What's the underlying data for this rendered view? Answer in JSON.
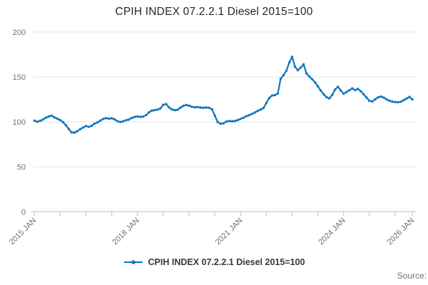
{
  "title": "CPIH INDEX 07.2.2.1 Diesel 2015=100",
  "legend": {
    "label": "CPIH INDEX 07.2.2.1 Diesel 2015=100",
    "marker": "line-dot"
  },
  "source_label": "Source:",
  "colors": {
    "line": "#1077bc",
    "grid": "#e4e4e4",
    "axis": "#bfc9e0",
    "tick_label": "#6f6f6f",
    "title": "#262626",
    "legend_text": "#383838",
    "source": "#707070",
    "background": "#ffffff"
  },
  "chart_data": {
    "type": "line",
    "title": "CPIH INDEX 07.2.2.1 Diesel 2015=100",
    "series_name": "CPIH INDEX 07.2.2.1 Diesel 2015=100",
    "frequency": "monthly",
    "x_start": "2015-01",
    "x_end": "2026-01",
    "xlabel": "",
    "ylabel": "",
    "ylim": [
      0,
      200
    ],
    "y_ticks": [
      0,
      50,
      100,
      150,
      200
    ],
    "grid": "horizontal",
    "legend_position": "bottom",
    "marker_style": "point",
    "x_tick_labels": [
      "2015 JAN",
      "2018 JAN",
      "2021 JAN",
      "2024 JAN",
      "2026 JAN"
    ],
    "x_tick_label_positions_months": [
      0,
      36,
      72,
      108,
      132
    ],
    "x_minor_tick_interval_months": 9,
    "values": [
      101.3,
      100.1,
      101.2,
      102.6,
      104.6,
      106.0,
      106.8,
      104.9,
      103.5,
      101.9,
      99.6,
      96.2,
      91.9,
      88.2,
      88.0,
      89.6,
      91.9,
      93.7,
      95.3,
      94.4,
      95.6,
      98.0,
      99.4,
      101.3,
      103.2,
      104.1,
      103.5,
      103.9,
      102.7,
      100.7,
      99.8,
      100.6,
      101.8,
      102.5,
      104.4,
      105.5,
      106.0,
      105.5,
      105.9,
      107.5,
      110.5,
      112.5,
      113.0,
      113.6,
      115.0,
      119.0,
      119.8,
      116.0,
      113.8,
      113.0,
      113.4,
      115.8,
      117.8,
      118.8,
      118.0,
      116.8,
      116.2,
      116.4,
      115.9,
      115.7,
      116.0,
      115.6,
      114.0,
      106.9,
      99.8,
      97.9,
      98.3,
      100.3,
      100.9,
      100.6,
      100.9,
      101.9,
      103.3,
      104.6,
      106.3,
      107.4,
      108.8,
      110.5,
      112.2,
      113.6,
      115.4,
      121.0,
      126.5,
      129.3,
      129.8,
      131.5,
      148.0,
      152.0,
      157.0,
      166.0,
      172.5,
      161.5,
      157.5,
      160.5,
      164.0,
      154.0,
      150.5,
      147.5,
      144.0,
      139.5,
      134.8,
      130.8,
      127.5,
      126.2,
      130.0,
      136.0,
      139.0,
      135.0,
      131.4,
      133.2,
      135.3,
      137.2,
      135.4,
      136.6,
      134.0,
      130.6,
      127.0,
      123.4,
      122.7,
      125.0,
      127.2,
      128.1,
      127.0,
      125.0,
      123.5,
      122.6,
      122.0,
      121.8,
      122.5,
      124.2,
      126.0,
      127.7,
      125.1
    ]
  }
}
